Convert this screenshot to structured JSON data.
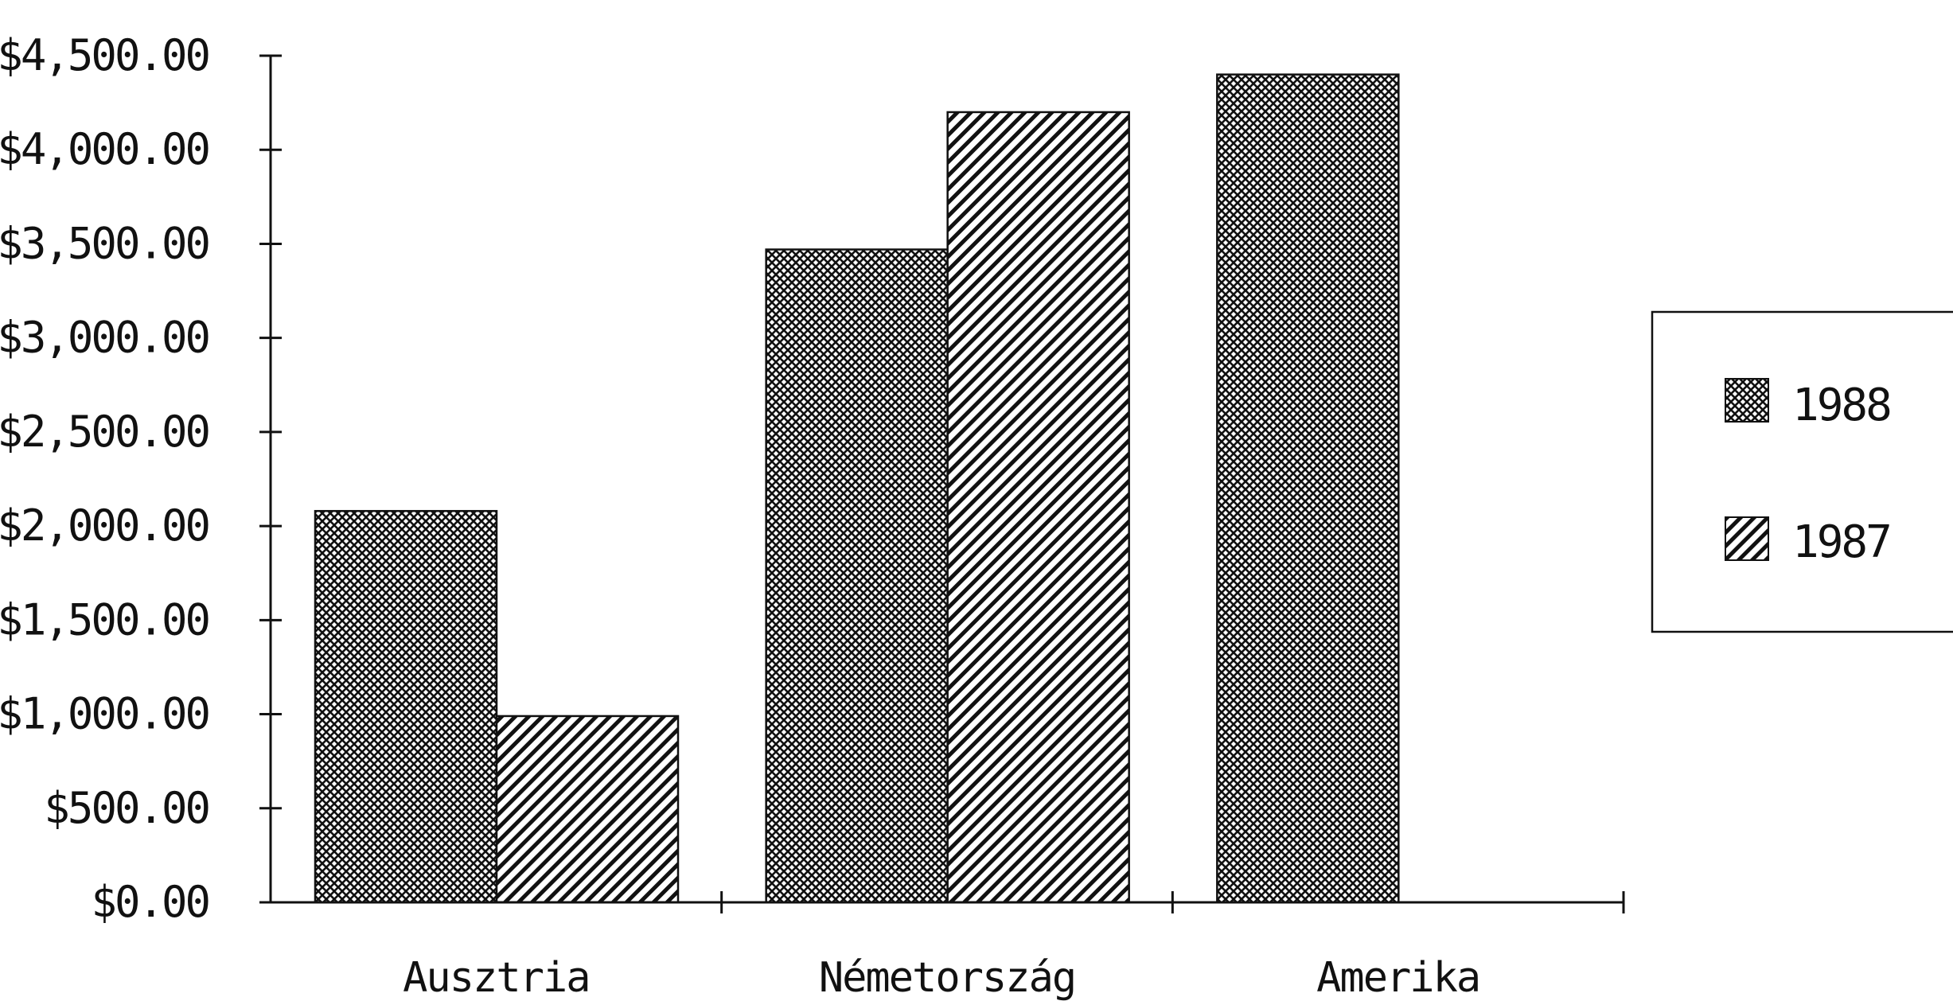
{
  "chart_data": {
    "type": "bar",
    "categories": [
      "Ausztria",
      "Németország",
      "Amerika"
    ],
    "category_labels": [
      "Ausztria",
      "Németország",
      "Amerika"
    ],
    "series": [
      {
        "name": "1988",
        "values": [
          2080,
          3470,
          4400
        ],
        "pattern": "crosshatch"
      },
      {
        "name": "1987",
        "values": [
          990,
          4200,
          0
        ],
        "pattern": "diagonal"
      }
    ],
    "ylim": [
      0,
      4500
    ],
    "y_ticks": [
      0,
      500,
      1000,
      1500,
      2000,
      2500,
      3000,
      3500,
      4000,
      4500
    ],
    "y_tick_labels": [
      "$0.00",
      "$500.00",
      "$1,000.00",
      "$1,500.00",
      "$2,000.00",
      "$2,500.00",
      "$3,000.00",
      "$3,500.00",
      "$4,000.00",
      "$4,500.00"
    ],
    "title": "",
    "xlabel": "",
    "ylabel": "",
    "grid": false,
    "legend": {
      "position": "right",
      "entries": [
        "1988",
        "1987"
      ]
    },
    "colors": {
      "ink": "#111111",
      "background": "#ffffff"
    }
  }
}
